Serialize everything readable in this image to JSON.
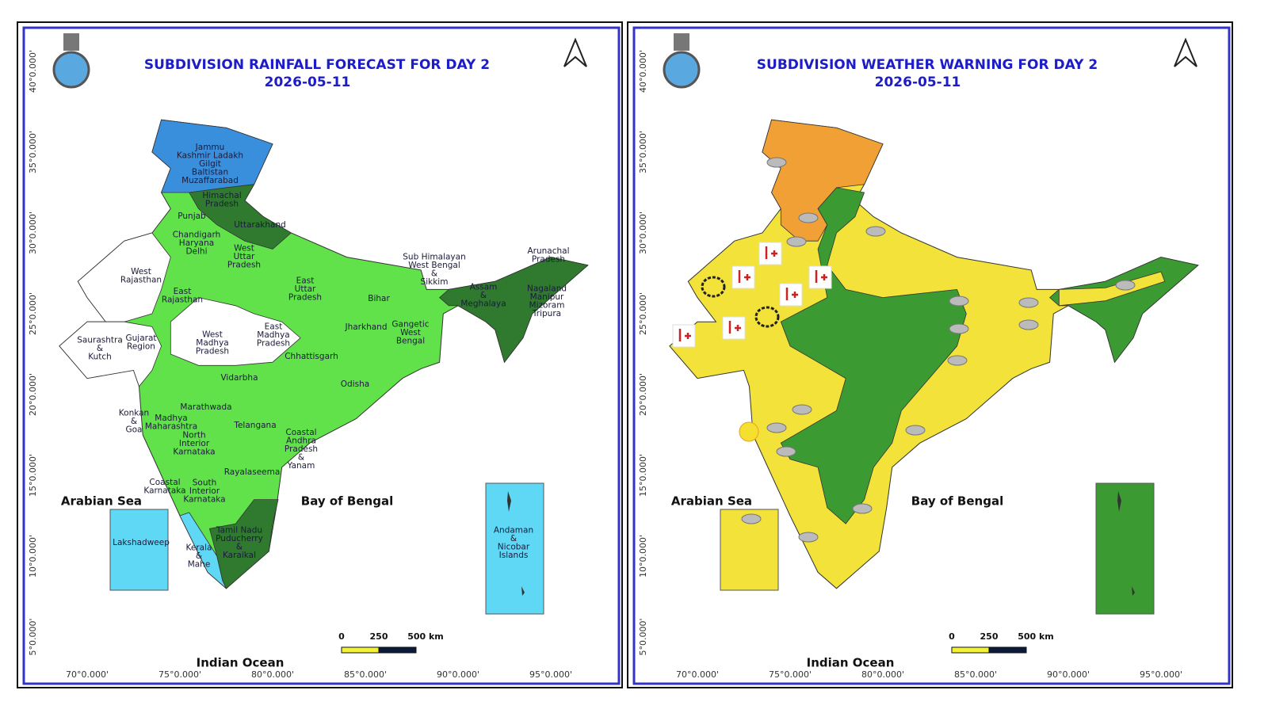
{
  "panels": [
    {
      "title": "SUBDIVISION RAINFALL FORECAST FOR DAY 2",
      "date": "2026-05-11",
      "seas": [
        "Arabian Sea",
        "Bay of Bengal",
        "Indian Ocean"
      ],
      "scale": [
        "0",
        "250",
        "500 km"
      ],
      "lat_labels": [
        "40°0.000'",
        "35°0.000'",
        "30°0.000'",
        "25°0.000'",
        "20°0.000'",
        "15°0.000'",
        "10°0.000'",
        "5°0.000'"
      ],
      "lon_labels": [
        "70°0.000'",
        "75°0.000'",
        "80°0.000'",
        "85°0.000'",
        "90°0.000'",
        "95°0.000'"
      ],
      "regions": [
        [
          "Jammu",
          "Kashmir Ladakh",
          "Gilgit",
          "Baltistan",
          "Muzaffarabad"
        ],
        [
          "Himachal",
          "Pradesh"
        ],
        [
          "Punjab"
        ],
        [
          "Uttarakhand"
        ],
        [
          "Chandigarh",
          "Haryana",
          "Delhi"
        ],
        [
          "West",
          "Uttar",
          "Pradesh"
        ],
        [
          "West",
          "Rajasthan"
        ],
        [
          "East",
          "Rajasthan"
        ],
        [
          "East",
          "Uttar",
          "Pradesh"
        ],
        [
          "Bihar"
        ],
        [
          "Sub Himalayan",
          "West Bengal",
          "&",
          "Sikkim"
        ],
        [
          "Assam",
          "&",
          "Meghalaya"
        ],
        [
          "Arunachal",
          "Pradesh"
        ],
        [
          "Nagaland",
          "Manipur",
          "Mizoram",
          "Tripura"
        ],
        [
          "West",
          "Madhya",
          "Pradesh"
        ],
        [
          "East",
          "Madhya",
          "Pradesh"
        ],
        [
          "Saurashtra",
          "&",
          "Kutch"
        ],
        [
          "Gujarat",
          "Region"
        ],
        [
          "Jharkhand"
        ],
        [
          "Gangetic",
          "West",
          "Bengal"
        ],
        [
          "Chhattisgarh"
        ],
        [
          "Vidarbha"
        ],
        [
          "Odisha"
        ],
        [
          "Konkan",
          "&",
          "Goa"
        ],
        [
          "Madhya",
          "Maharashtra"
        ],
        [
          "Marathwada"
        ],
        [
          "Telangana"
        ],
        [
          "North",
          "Interior",
          "Karnataka"
        ],
        [
          "Coastal",
          "Andhra",
          "Pradesh",
          "&",
          "Yanam"
        ],
        [
          "Rayalaseema"
        ],
        [
          "Coastal",
          "Karnataka"
        ],
        [
          "South",
          "Interior",
          "Karnataka"
        ],
        [
          "Tamil Nadu",
          "Puducherry",
          "&",
          "Karaikal"
        ],
        [
          "Kerala",
          "&",
          "Mahe"
        ],
        [
          "Lakshadweep"
        ],
        [
          "Andaman",
          "&",
          "Nicobar",
          "Islands"
        ]
      ]
    },
    {
      "title": "SUBDIVISION WEATHER WARNING FOR DAY 2",
      "date": "2026-05-11",
      "seas": [
        "Arabian Sea",
        "Bay of Bengal",
        "Indian Ocean"
      ],
      "scale": [
        "0",
        "250",
        "500 km"
      ],
      "lat_labels": [
        "40°0.000'",
        "35°0.000'",
        "30°0.000'",
        "25°0.000'",
        "20°0.000'",
        "15°0.000'",
        "10°0.000'",
        "5°0.000'"
      ],
      "lon_labels": [
        "70°0.000'",
        "75°0.000'",
        "80°0.000'",
        "85°0.000'",
        "90°0.000'",
        "95°0.000'"
      ]
    }
  ]
}
